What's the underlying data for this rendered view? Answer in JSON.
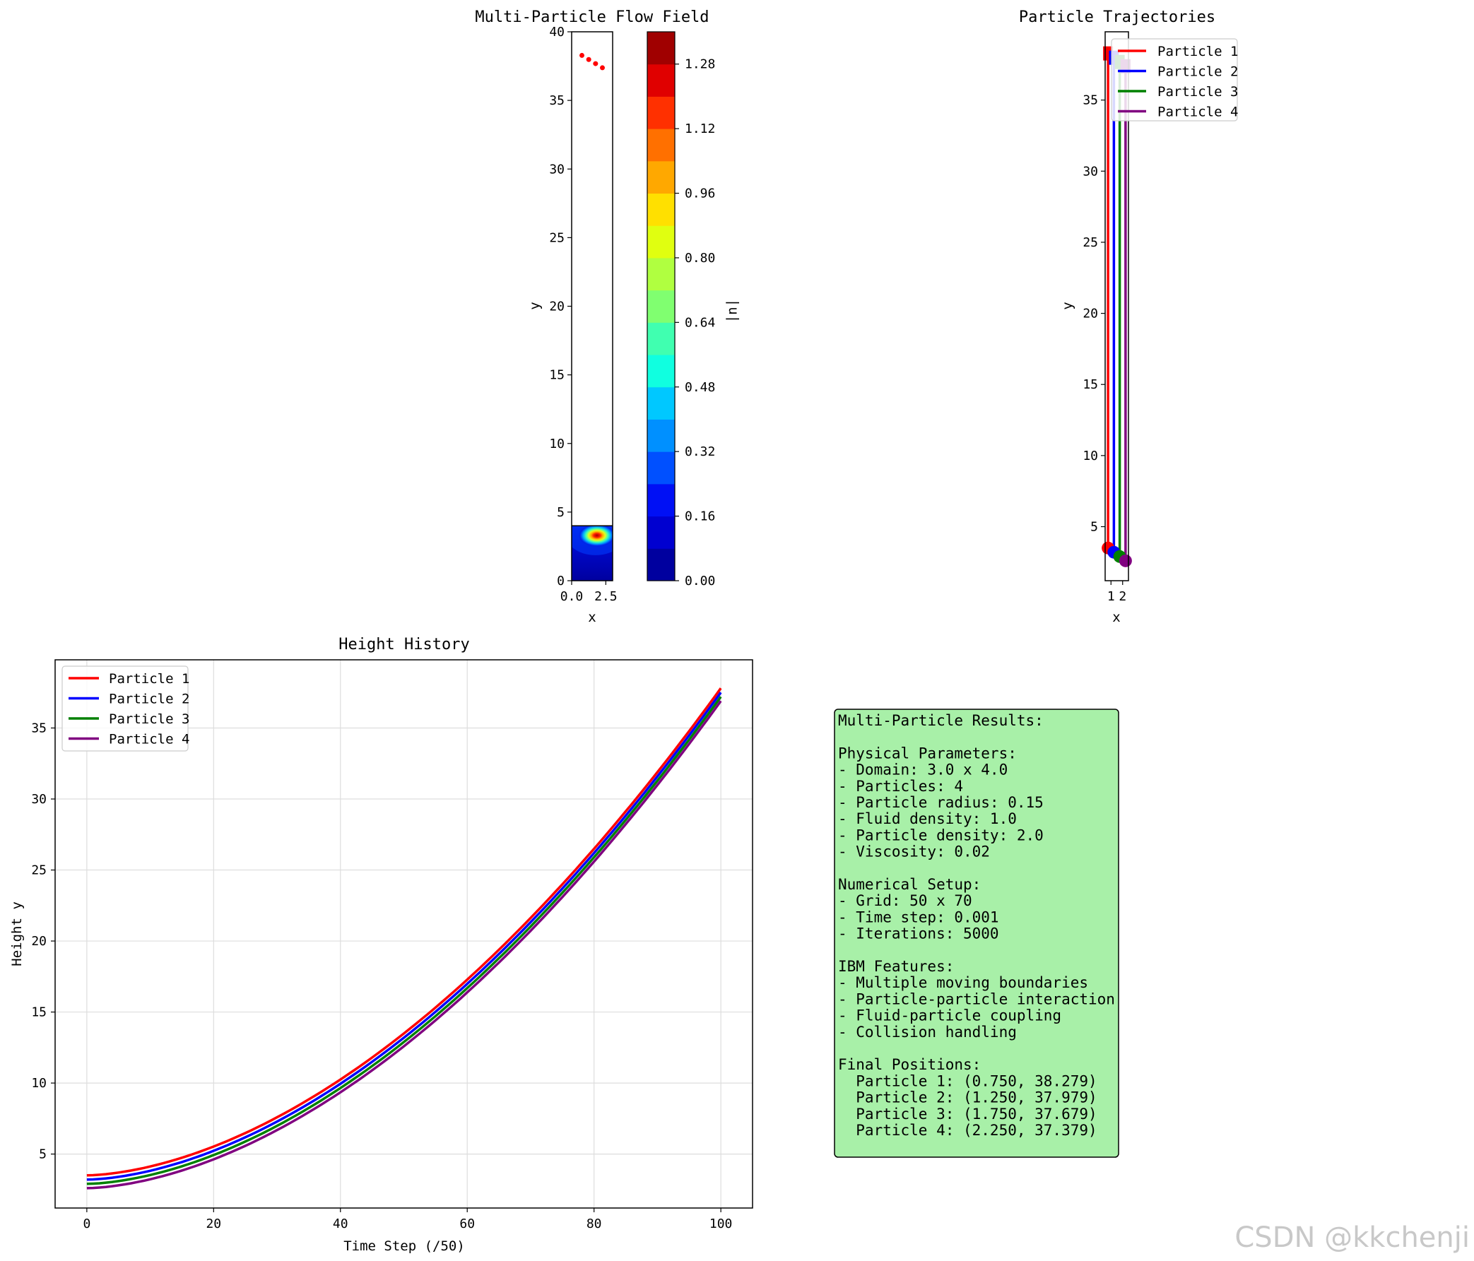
{
  "watermark": "CSDN @kkchenji",
  "colors": {
    "p1": "#ff0000",
    "p2": "#0000ff",
    "p3": "#008000",
    "p4": "#800080",
    "info_bg": "#a8f0a8"
  },
  "chart_data": [
    {
      "type": "heatmap",
      "title": "Multi-Particle Flow Field",
      "xlabel": "x",
      "ylabel": "y",
      "xticks": [
        "0.0",
        "2.5"
      ],
      "yticks": [
        "0",
        "5",
        "10",
        "15",
        "20",
        "25",
        "30",
        "35",
        "40"
      ],
      "xlim": [
        0,
        3
      ],
      "ylim": [
        0,
        40
      ],
      "colorbar": {
        "label": "|u|",
        "ticks": [
          "0.00",
          "0.16",
          "0.32",
          "0.48",
          "0.64",
          "0.80",
          "0.96",
          "1.12",
          "1.28"
        ],
        "range": [
          0,
          1.36
        ],
        "levels": [
          "#00009f",
          "#0000d0",
          "#0010f5",
          "#0050ff",
          "#0090ff",
          "#00c8ff",
          "#10ffe0",
          "#40ffb0",
          "#80ff70",
          "#b0ff40",
          "#e0ff10",
          "#ffe000",
          "#ffa800",
          "#ff7000",
          "#ff3000",
          "#e00000",
          "#a00000"
        ]
      },
      "field_extent": {
        "x": [
          0,
          3
        ],
        "y": [
          0,
          4
        ]
      },
      "hotspot": {
        "x": 1.85,
        "y": 3.3,
        "peak": 1.3
      },
      "markers": {
        "color": "#ff0000",
        "points": [
          {
            "x": 0.75,
            "y": 38.279
          },
          {
            "x": 1.25,
            "y": 37.979
          },
          {
            "x": 1.75,
            "y": 37.679
          },
          {
            "x": 2.25,
            "y": 37.379
          }
        ]
      }
    },
    {
      "type": "line",
      "title": "Particle Trajectories",
      "xlabel": "x",
      "ylabel": "y",
      "xticks": [
        "1",
        "2"
      ],
      "yticks": [
        "5",
        "10",
        "15",
        "20",
        "25",
        "30",
        "35"
      ],
      "xlim": [
        0.5,
        2.5
      ],
      "ylim": [
        1.2,
        39.8
      ],
      "series": [
        {
          "name": "Particle 1",
          "color": "#ff0000",
          "x": [
            0.75,
            0.75
          ],
          "y": [
            3.5,
            38.279
          ]
        },
        {
          "name": "Particle 2",
          "color": "#0000ff",
          "x": [
            1.25,
            1.25
          ],
          "y": [
            3.2,
            37.979
          ]
        },
        {
          "name": "Particle 3",
          "color": "#008000",
          "x": [
            1.75,
            1.75
          ],
          "y": [
            2.9,
            37.679
          ]
        },
        {
          "name": "Particle 4",
          "color": "#800080",
          "x": [
            2.25,
            2.25
          ],
          "y": [
            2.6,
            37.379
          ]
        }
      ],
      "legend": "upper-right"
    },
    {
      "type": "line",
      "title": "Height History",
      "xlabel": "Time Step (/50)",
      "ylabel": "Height y",
      "xticks": [
        "0",
        "20",
        "40",
        "60",
        "80",
        "100"
      ],
      "yticks": [
        "5",
        "10",
        "15",
        "20",
        "25",
        "30",
        "35"
      ],
      "xlim": [
        -5,
        105
      ],
      "ylim": [
        1.2,
        39.8
      ],
      "grid": true,
      "legend": "upper-left",
      "x_range": [
        0,
        100
      ],
      "series": [
        {
          "name": "Particle 1",
          "color": "#ff0000",
          "start": 3.5,
          "end": 37.8
        },
        {
          "name": "Particle 2",
          "color": "#0000ff",
          "start": 3.2,
          "end": 37.5
        },
        {
          "name": "Particle 3",
          "color": "#008000",
          "start": 2.9,
          "end": 37.2
        },
        {
          "name": "Particle 4",
          "color": "#800080",
          "start": 2.6,
          "end": 36.9
        }
      ]
    }
  ],
  "info_lines": [
    "Multi-Particle Results:",
    "",
    "Physical Parameters:",
    "- Domain: 3.0 x 4.0",
    "- Particles: 4",
    "- Particle radius: 0.15",
    "- Fluid density: 1.0",
    "- Particle density: 2.0",
    "- Viscosity: 0.02",
    "",
    "Numerical Setup:",
    "- Grid: 50 x 70",
    "- Time step: 0.001",
    "- Iterations: 5000",
    "",
    "IBM Features:",
    "- Multiple moving boundaries",
    "- Particle-particle interaction",
    "- Fluid-particle coupling",
    "- Collision handling",
    "",
    "Final Positions:",
    "  Particle 1: (0.750, 38.279)",
    "  Particle 2: (1.250, 37.979)",
    "  Particle 3: (1.750, 37.679)",
    "  Particle 4: (2.250, 37.379)"
  ]
}
